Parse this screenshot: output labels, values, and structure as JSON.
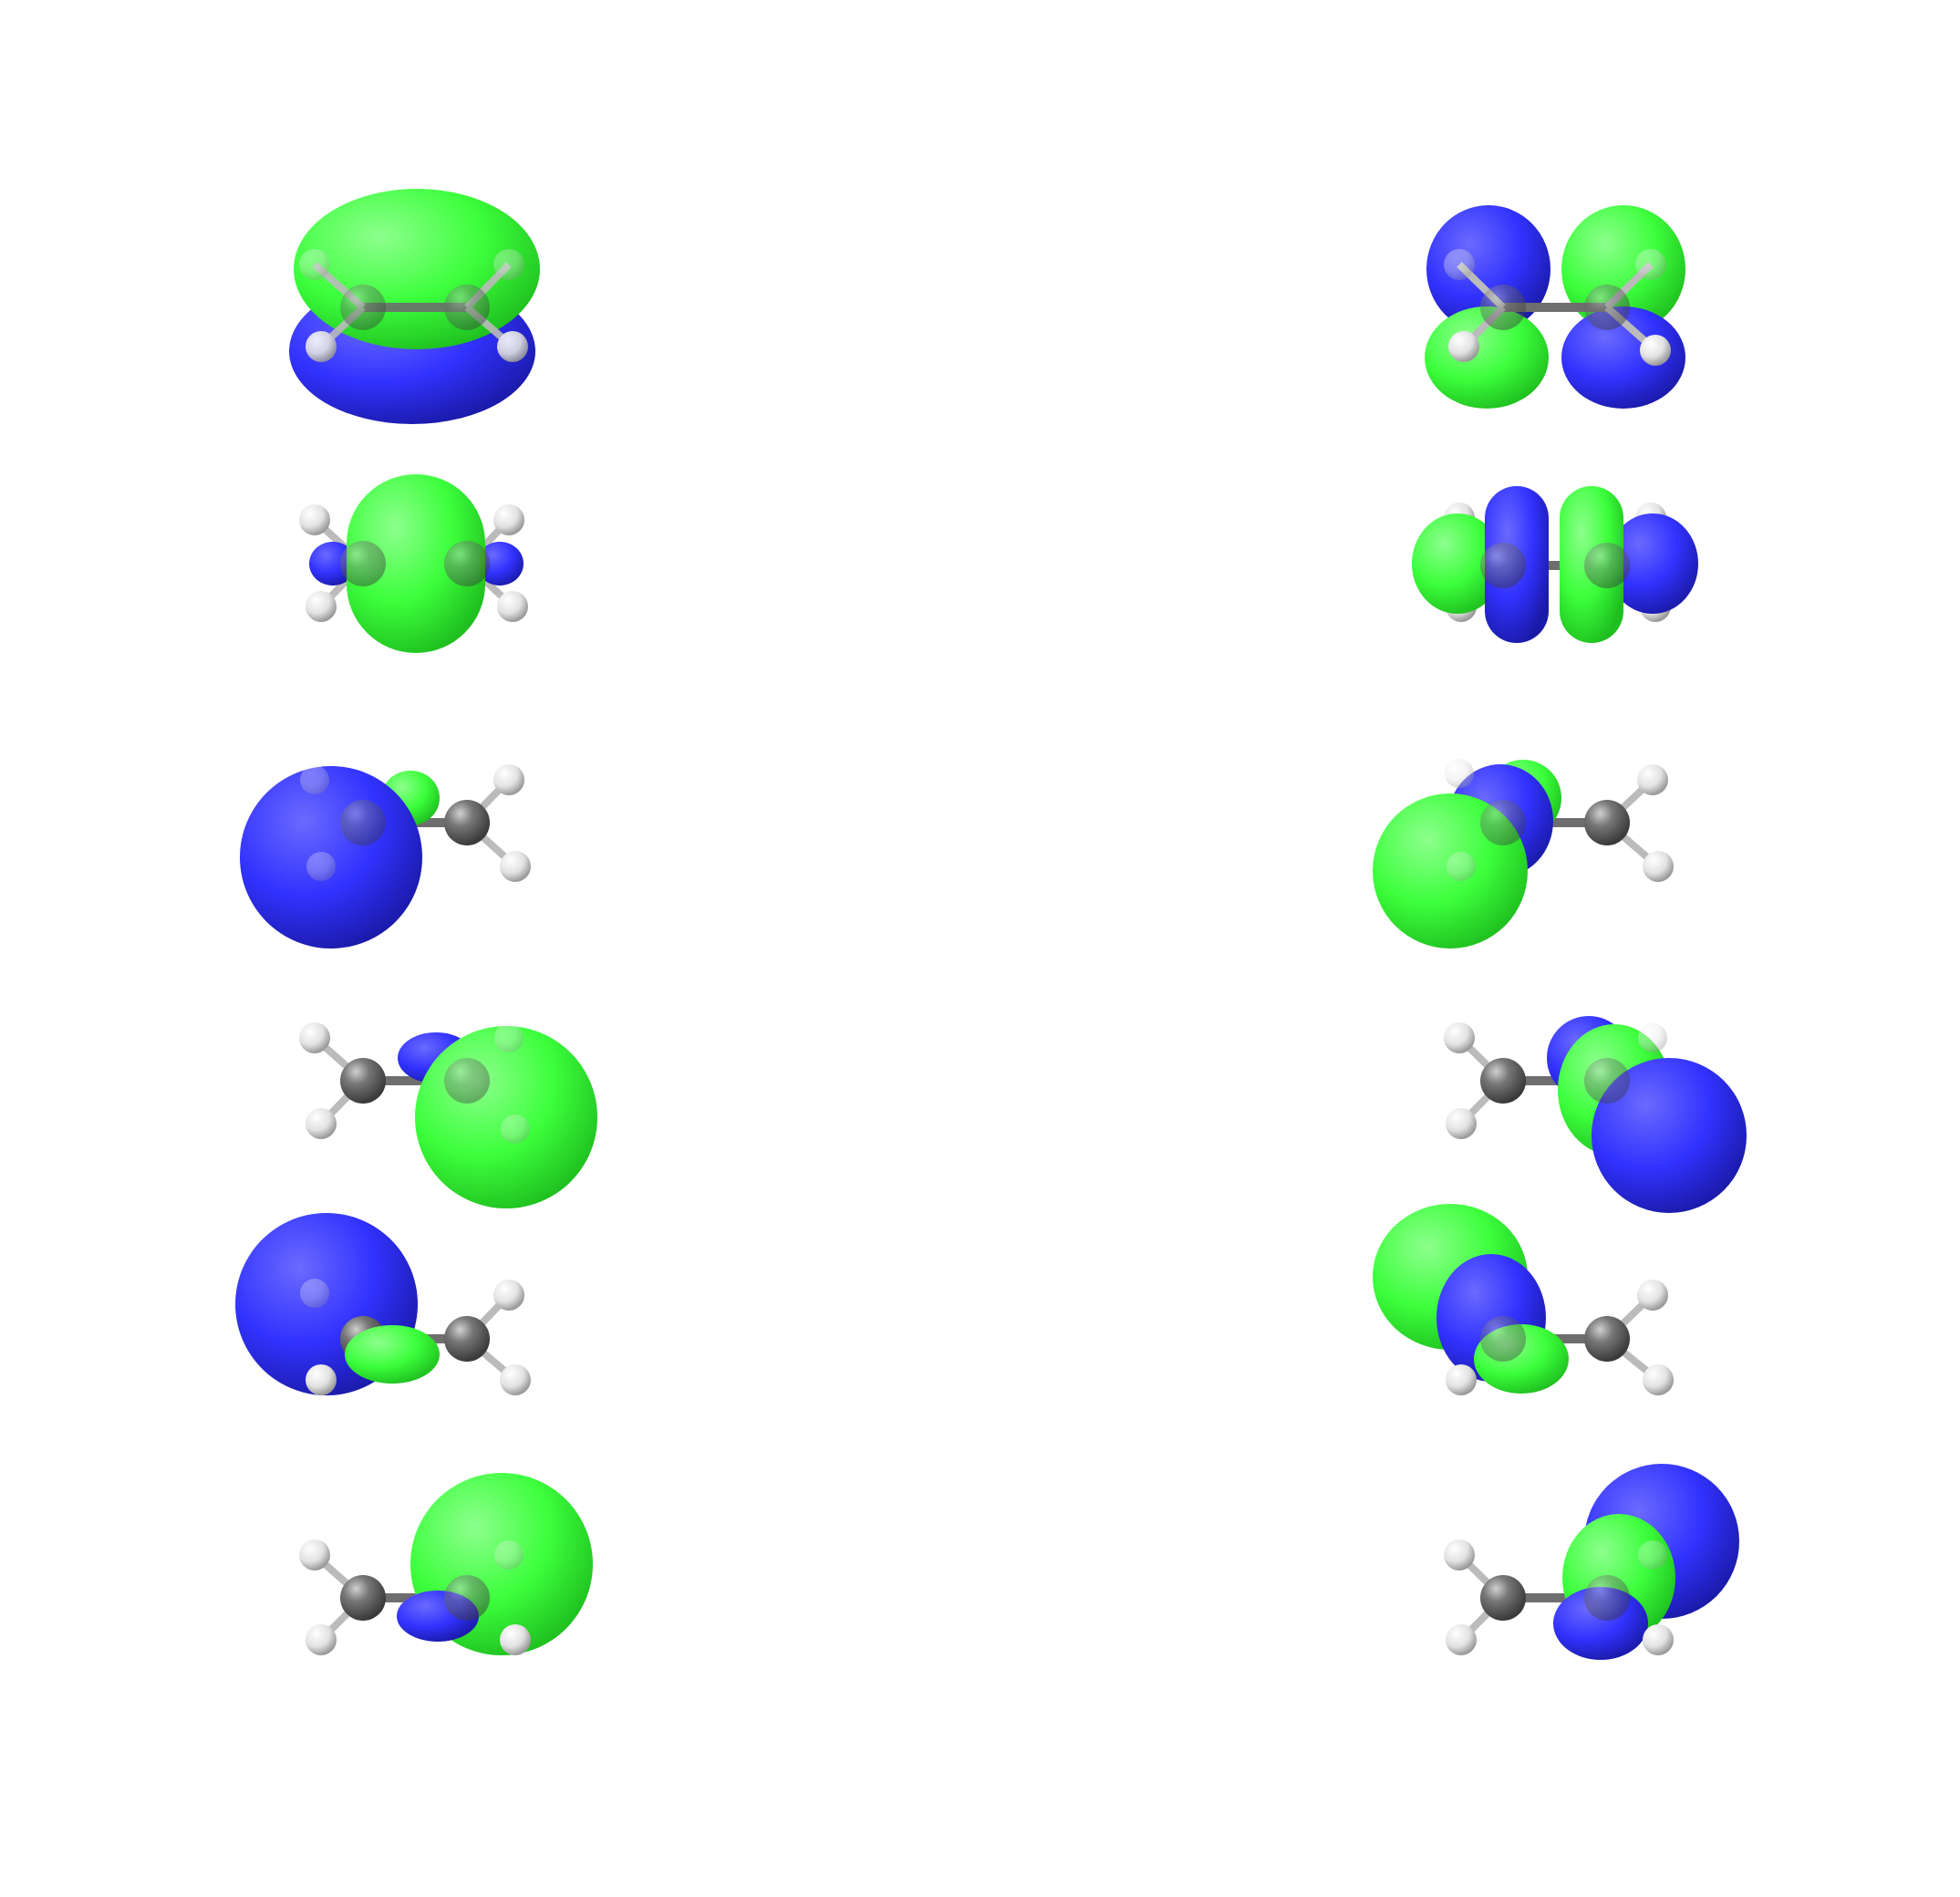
{
  "figure": {
    "description_visible_text": "",
    "colors": {
      "background": "#ffffff",
      "lobe_positive": "#3cff3c",
      "lobe_negative": "#3232ff",
      "carbon": "#6e6e6e",
      "hydrogen": "#e6e6e6",
      "bond": "#6e6e6e"
    },
    "layout": {
      "columns": 2,
      "rows": 6
    },
    "orbitals": [
      {
        "row": 1,
        "column": "left",
        "lobes": [
          "positive-top",
          "negative-bottom"
        ]
      },
      {
        "row": 1,
        "column": "right",
        "lobes": [
          "negative",
          "positive",
          "positive",
          "negative"
        ]
      },
      {
        "row": 2,
        "column": "left",
        "lobes": [
          "positive-center",
          "negative-small-left",
          "negative-small-right"
        ]
      },
      {
        "row": 2,
        "column": "right",
        "lobes": [
          "positive",
          "negative",
          "positive",
          "negative"
        ]
      },
      {
        "row": 3,
        "column": "left",
        "lobes": [
          "negative-large",
          "positive-small"
        ]
      },
      {
        "row": 3,
        "column": "right",
        "lobes": [
          "positive-large",
          "negative",
          "positive-small"
        ]
      },
      {
        "row": 4,
        "column": "left",
        "lobes": [
          "positive-large",
          "negative-small"
        ]
      },
      {
        "row": 4,
        "column": "right",
        "lobes": [
          "negative-large",
          "positive",
          "negative-small"
        ]
      },
      {
        "row": 5,
        "column": "left",
        "lobes": [
          "negative-large",
          "positive-small"
        ]
      },
      {
        "row": 5,
        "column": "right",
        "lobes": [
          "positive-large",
          "negative",
          "positive"
        ]
      },
      {
        "row": 6,
        "column": "left",
        "lobes": [
          "positive-large",
          "negative-small"
        ]
      },
      {
        "row": 6,
        "column": "right",
        "lobes": [
          "negative-large",
          "positive",
          "negative"
        ]
      }
    ]
  }
}
